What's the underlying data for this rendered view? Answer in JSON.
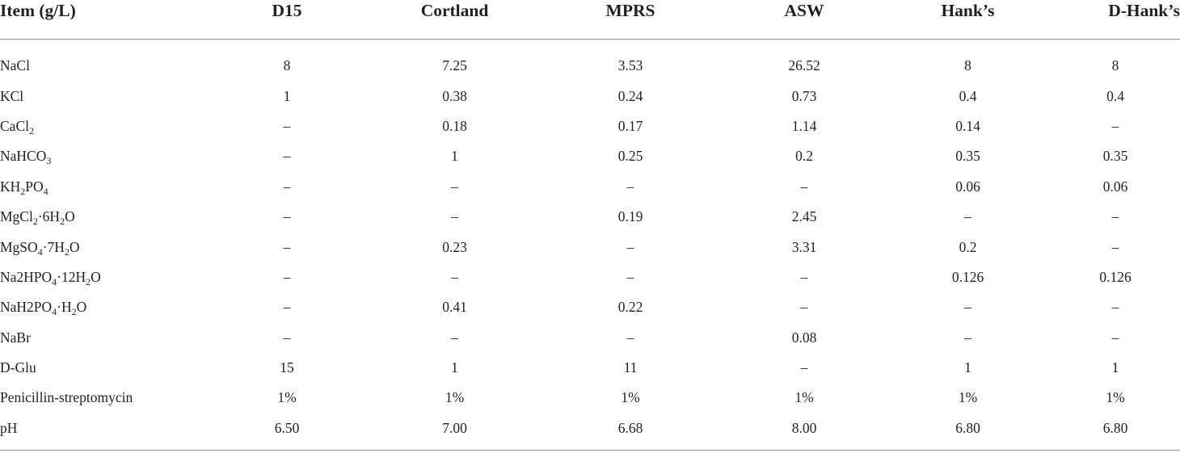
{
  "table": {
    "columns": [
      "Item (g/L)",
      "D15",
      "Cortland",
      "MPRS",
      "ASW",
      "Hank’s",
      "D-Hank’s"
    ],
    "rows": [
      {
        "item": [
          {
            "t": "NaCl"
          }
        ],
        "values": [
          "8",
          "7.25",
          "3.53",
          "26.52",
          "8",
          "8"
        ]
      },
      {
        "item": [
          {
            "t": "KCl"
          }
        ],
        "values": [
          "1",
          "0.38",
          "0.24",
          "0.73",
          "0.4",
          "0.4"
        ]
      },
      {
        "item": [
          {
            "t": "CaCl"
          },
          {
            "s": "2"
          }
        ],
        "values": [
          "–",
          "0.18",
          "0.17",
          "1.14",
          "0.14",
          "–"
        ]
      },
      {
        "item": [
          {
            "t": "NaHCO"
          },
          {
            "s": "3"
          }
        ],
        "values": [
          "–",
          "1",
          "0.25",
          "0.2",
          "0.35",
          "0.35"
        ]
      },
      {
        "item": [
          {
            "t": "KH"
          },
          {
            "s": "2"
          },
          {
            "t": "PO"
          },
          {
            "s": "4"
          }
        ],
        "values": [
          "–",
          "–",
          "–",
          "–",
          "0.06",
          "0.06"
        ]
      },
      {
        "item": [
          {
            "t": "MgCl"
          },
          {
            "s": "2"
          },
          {
            "t": "·6H"
          },
          {
            "s": "2"
          },
          {
            "t": "O"
          }
        ],
        "values": [
          "–",
          "–",
          "0.19",
          "2.45",
          "–",
          "–"
        ]
      },
      {
        "item": [
          {
            "t": "MgSO"
          },
          {
            "s": "4"
          },
          {
            "t": "·7H"
          },
          {
            "s": "2"
          },
          {
            "t": "O"
          }
        ],
        "values": [
          "–",
          "0.23",
          "–",
          "3.31",
          "0.2",
          "–"
        ]
      },
      {
        "item": [
          {
            "t": "Na2HPO"
          },
          {
            "s": "4"
          },
          {
            "t": "·12H"
          },
          {
            "s": "2"
          },
          {
            "t": "O"
          }
        ],
        "values": [
          "–",
          "–",
          "–",
          "–",
          "0.126",
          "0.126"
        ]
      },
      {
        "item": [
          {
            "t": "NaH2PO"
          },
          {
            "s": "4"
          },
          {
            "t": "·H"
          },
          {
            "s": "2"
          },
          {
            "t": "O"
          }
        ],
        "values": [
          "–",
          "0.41",
          "0.22",
          "–",
          "–",
          "–"
        ]
      },
      {
        "item": [
          {
            "t": "NaBr"
          }
        ],
        "values": [
          "–",
          "–",
          "–",
          "0.08",
          "–",
          "–"
        ]
      },
      {
        "item": [
          {
            "t": "D-Glu"
          }
        ],
        "values": [
          "15",
          "1",
          "11",
          "–",
          "1",
          "1"
        ]
      },
      {
        "item": [
          {
            "t": "Penicillin-streptomycin"
          }
        ],
        "values": [
          "1%",
          "1%",
          "1%",
          "1%",
          "1%",
          "1%"
        ]
      },
      {
        "item": [
          {
            "t": "pH"
          }
        ],
        "values": [
          "6.50",
          "7.00",
          "6.68",
          "8.00",
          "6.80",
          "6.80"
        ]
      }
    ]
  }
}
